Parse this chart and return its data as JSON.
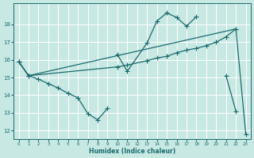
{
  "xlabel": "Humidex (Indice chaleur)",
  "xlim": [
    -0.5,
    23.5
  ],
  "ylim": [
    11.5,
    19.2
  ],
  "yticks": [
    12,
    13,
    14,
    15,
    16,
    17,
    18
  ],
  "xticks": [
    0,
    1,
    2,
    3,
    4,
    5,
    6,
    7,
    8,
    9,
    10,
    11,
    12,
    13,
    14,
    15,
    16,
    17,
    18,
    19,
    20,
    21,
    22,
    23
  ],
  "bg_color": "#c8e8e4",
  "line_color": "#1a6b6b",
  "grid_color": "#ffffff",
  "line1_segments": [
    {
      "x": [
        0,
        1,
        2,
        3,
        4,
        5,
        6,
        7,
        8,
        9
      ],
      "y": [
        15.9,
        15.1,
        14.9,
        14.65,
        14.4,
        14.1,
        13.85,
        12.95,
        12.6,
        13.25
      ]
    },
    {
      "x": [
        10,
        11,
        13,
        14,
        15,
        16,
        17,
        18
      ],
      "y": [
        16.3,
        15.35,
        16.95,
        18.2,
        18.65,
        18.4,
        17.9,
        18.45
      ]
    },
    {
      "x": [
        21,
        22
      ],
      "y": [
        15.1,
        13.1
      ]
    }
  ],
  "line2": {
    "x": [
      0,
      1,
      10,
      11,
      13,
      14,
      15,
      16,
      17,
      18,
      19,
      20,
      21,
      22
    ],
    "y": [
      15.9,
      15.1,
      15.6,
      15.7,
      15.95,
      16.1,
      16.2,
      16.4,
      16.55,
      16.65,
      16.8,
      17.0,
      17.3,
      17.75
    ]
  },
  "line3": {
    "x": [
      0,
      1,
      22,
      23
    ],
    "y": [
      15.9,
      15.1,
      17.75,
      11.8
    ]
  }
}
